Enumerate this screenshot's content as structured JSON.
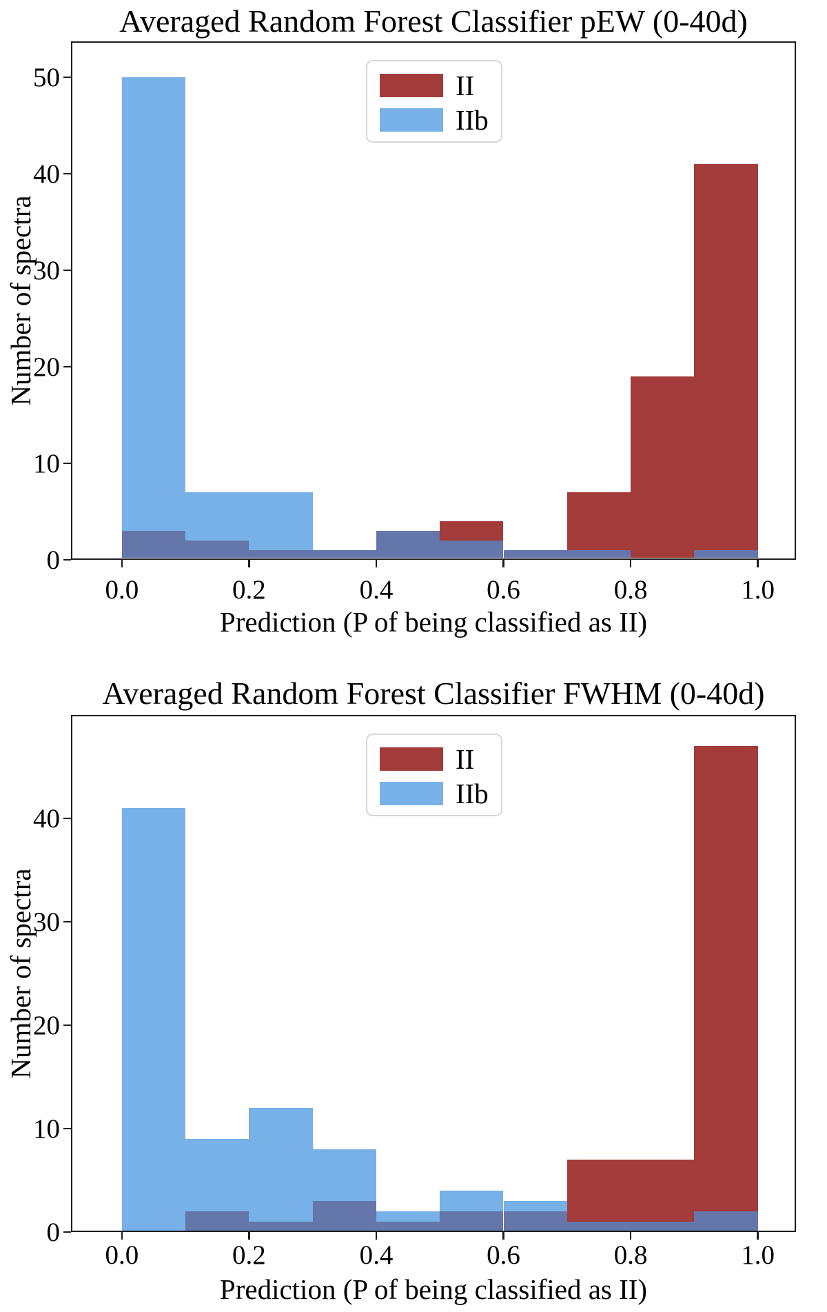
{
  "chart_data": [
    {
      "type": "bar",
      "subtype": "overlapping-histogram",
      "title": "Averaged Random Forest Classifier pEW (0-40d)",
      "xlabel": "Prediction (P of being classified as II)",
      "ylabel": "Number of spectra",
      "bin_edges": [
        0.0,
        0.1,
        0.2,
        0.3,
        0.4,
        0.5,
        0.6,
        0.7,
        0.8,
        0.9,
        1.0
      ],
      "series": [
        {
          "name": "II",
          "color": "#a33b3b",
          "values": [
            3,
            2,
            1,
            1,
            3,
            4,
            1,
            7,
            19,
            41
          ]
        },
        {
          "name": "IIb",
          "color": "#77b1e8",
          "values": [
            50,
            7,
            7,
            1,
            3,
            2,
            1,
            1,
            0,
            1
          ]
        }
      ],
      "overlap_color": "#6476aa",
      "x_tick_labels": [
        "0.0",
        "0.2",
        "0.4",
        "0.6",
        "0.8",
        "1.0"
      ],
      "y_tick_labels": [
        "0",
        "10",
        "20",
        "30",
        "40",
        "50"
      ],
      "xlim": [
        -0.08,
        1.06
      ],
      "ylim": [
        0,
        53.7
      ],
      "legend_position": "upper center",
      "grid": false
    },
    {
      "type": "bar",
      "subtype": "overlapping-histogram",
      "title": "Averaged Random Forest Classifier FWHM (0-40d)",
      "xlabel": "Prediction (P of being classified as II)",
      "ylabel": "Number of spectra",
      "bin_edges": [
        0.0,
        0.1,
        0.2,
        0.3,
        0.4,
        0.5,
        0.6,
        0.7,
        0.8,
        0.9,
        1.0
      ],
      "series": [
        {
          "name": "II",
          "color": "#a33b3b",
          "values": [
            0,
            2,
            1,
            3,
            1,
            2,
            2,
            7,
            7,
            47
          ]
        },
        {
          "name": "IIb",
          "color": "#77b1e8",
          "values": [
            41,
            9,
            12,
            8,
            2,
            4,
            3,
            1,
            1,
            2
          ]
        }
      ],
      "overlap_color": "#6476aa",
      "x_tick_labels": [
        "0.0",
        "0.2",
        "0.4",
        "0.6",
        "0.8",
        "1.0"
      ],
      "y_tick_labels": [
        "0",
        "10",
        "20",
        "30",
        "40"
      ],
      "xlim": [
        -0.08,
        1.06
      ],
      "ylim": [
        0,
        50
      ],
      "legend_position": "upper center",
      "grid": false
    }
  ]
}
